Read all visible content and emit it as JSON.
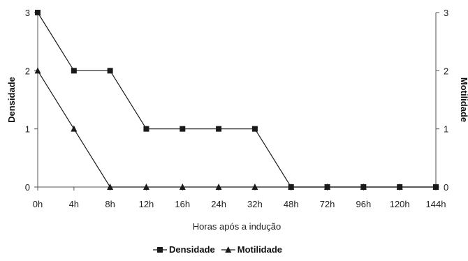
{
  "chart_data": {
    "type": "line",
    "categories": [
      "0h",
      "4h",
      "8h",
      "12h",
      "16h",
      "24h",
      "32h",
      "48h",
      "72h",
      "96h",
      "120h",
      "144h"
    ],
    "series": [
      {
        "name": "Densidade",
        "values": [
          3,
          2,
          2,
          1,
          1,
          1,
          1,
          0,
          0,
          0,
          0,
          0
        ],
        "marker": "square",
        "color": "#1a1a1a",
        "axis": "left"
      },
      {
        "name": "Motilidade",
        "values": [
          2,
          1,
          0,
          0,
          0,
          0,
          0,
          0,
          0,
          0,
          0,
          0
        ],
        "marker": "triangle",
        "color": "#1a1a1a",
        "axis": "right"
      }
    ],
    "xlabel": "Horas após a indução",
    "ylabel_left": "Densidade",
    "ylabel_right": "Motilidade",
    "ylim": [
      0,
      3
    ],
    "yticks": [
      "0",
      "1",
      "2",
      "3"
    ],
    "grid": false,
    "legend_position": "bottom-center"
  }
}
